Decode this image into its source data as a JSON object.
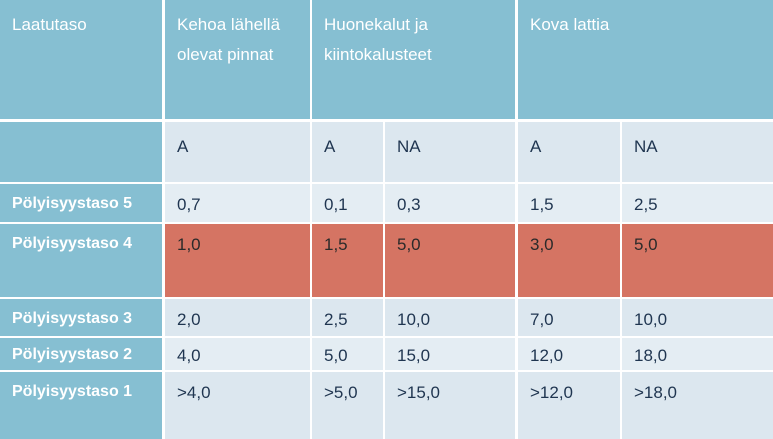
{
  "header": {
    "col0": "Laatutaso",
    "col1_line1": "Kehoa lähellä",
    "col1_line2": "olevat pinnat",
    "col2_line1": "Huonekalut ja",
    "col2_line2": "kiintokalusteet",
    "col3": "Kova lattia"
  },
  "subheader": [
    "A",
    "A",
    "NA",
    "A",
    "NA"
  ],
  "rows": [
    {
      "label": "Pölyisyystaso 5",
      "values": [
        "0,7",
        "0,1",
        "0,3",
        "1,5",
        "2,5"
      ]
    },
    {
      "label": "Pölyisyystaso 4",
      "values": [
        "1,0",
        "1,5",
        "5,0",
        "3,0",
        "5,0"
      ]
    },
    {
      "label": "Pölyisyystaso 3",
      "values": [
        "2,0",
        "2,5",
        "10,0",
        "7,0",
        "10,0"
      ]
    },
    {
      "label": "Pölyisyystaso 2",
      "values": [
        "4,0",
        "5,0",
        "15,0",
        "12,0",
        "18,0"
      ]
    },
    {
      "label": "Pölyisyystaso 1",
      "values": [
        ">4,0",
        ">5,0",
        ">15,0",
        ">12,0",
        ">18,0"
      ]
    }
  ],
  "colors": {
    "header_bg": "#86bfd2",
    "cell_bg": "#dce7ef",
    "highlight_row_bg": "#d57463"
  }
}
